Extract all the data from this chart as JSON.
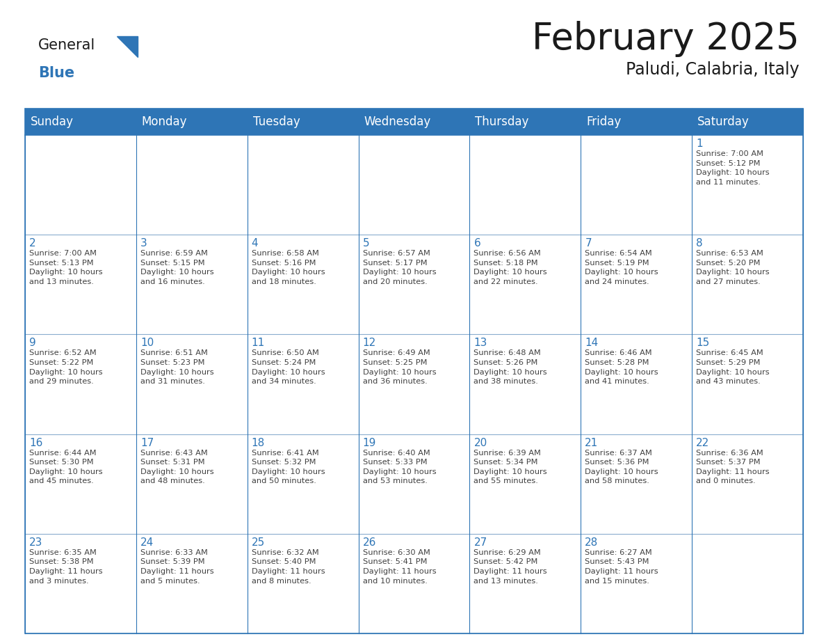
{
  "title": "February 2025",
  "subtitle": "Paludi, Calabria, Italy",
  "header_bg": "#2E75B6",
  "header_text_color": "#FFFFFF",
  "border_color": "#2E75B6",
  "row_border_color": "#4472A8",
  "day_number_color": "#2E75B6",
  "cell_text_color": "#404040",
  "logo_text_color": "#1a1a1a",
  "logo_blue_color": "#2E75B6",
  "days_of_week": [
    "Sunday",
    "Monday",
    "Tuesday",
    "Wednesday",
    "Thursday",
    "Friday",
    "Saturday"
  ],
  "title_fontsize": 38,
  "subtitle_fontsize": 17,
  "header_fontsize": 12,
  "day_num_fontsize": 11,
  "cell_text_fontsize": 8.2,
  "logo_general_fontsize": 15,
  "logo_blue_fontsize": 15,
  "calendar_data": [
    [
      {
        "day": null,
        "info": ""
      },
      {
        "day": null,
        "info": ""
      },
      {
        "day": null,
        "info": ""
      },
      {
        "day": null,
        "info": ""
      },
      {
        "day": null,
        "info": ""
      },
      {
        "day": null,
        "info": ""
      },
      {
        "day": 1,
        "info": "Sunrise: 7:00 AM\nSunset: 5:12 PM\nDaylight: 10 hours\nand 11 minutes."
      }
    ],
    [
      {
        "day": 2,
        "info": "Sunrise: 7:00 AM\nSunset: 5:13 PM\nDaylight: 10 hours\nand 13 minutes."
      },
      {
        "day": 3,
        "info": "Sunrise: 6:59 AM\nSunset: 5:15 PM\nDaylight: 10 hours\nand 16 minutes."
      },
      {
        "day": 4,
        "info": "Sunrise: 6:58 AM\nSunset: 5:16 PM\nDaylight: 10 hours\nand 18 minutes."
      },
      {
        "day": 5,
        "info": "Sunrise: 6:57 AM\nSunset: 5:17 PM\nDaylight: 10 hours\nand 20 minutes."
      },
      {
        "day": 6,
        "info": "Sunrise: 6:56 AM\nSunset: 5:18 PM\nDaylight: 10 hours\nand 22 minutes."
      },
      {
        "day": 7,
        "info": "Sunrise: 6:54 AM\nSunset: 5:19 PM\nDaylight: 10 hours\nand 24 minutes."
      },
      {
        "day": 8,
        "info": "Sunrise: 6:53 AM\nSunset: 5:20 PM\nDaylight: 10 hours\nand 27 minutes."
      }
    ],
    [
      {
        "day": 9,
        "info": "Sunrise: 6:52 AM\nSunset: 5:22 PM\nDaylight: 10 hours\nand 29 minutes."
      },
      {
        "day": 10,
        "info": "Sunrise: 6:51 AM\nSunset: 5:23 PM\nDaylight: 10 hours\nand 31 minutes."
      },
      {
        "day": 11,
        "info": "Sunrise: 6:50 AM\nSunset: 5:24 PM\nDaylight: 10 hours\nand 34 minutes."
      },
      {
        "day": 12,
        "info": "Sunrise: 6:49 AM\nSunset: 5:25 PM\nDaylight: 10 hours\nand 36 minutes."
      },
      {
        "day": 13,
        "info": "Sunrise: 6:48 AM\nSunset: 5:26 PM\nDaylight: 10 hours\nand 38 minutes."
      },
      {
        "day": 14,
        "info": "Sunrise: 6:46 AM\nSunset: 5:28 PM\nDaylight: 10 hours\nand 41 minutes."
      },
      {
        "day": 15,
        "info": "Sunrise: 6:45 AM\nSunset: 5:29 PM\nDaylight: 10 hours\nand 43 minutes."
      }
    ],
    [
      {
        "day": 16,
        "info": "Sunrise: 6:44 AM\nSunset: 5:30 PM\nDaylight: 10 hours\nand 45 minutes."
      },
      {
        "day": 17,
        "info": "Sunrise: 6:43 AM\nSunset: 5:31 PM\nDaylight: 10 hours\nand 48 minutes."
      },
      {
        "day": 18,
        "info": "Sunrise: 6:41 AM\nSunset: 5:32 PM\nDaylight: 10 hours\nand 50 minutes."
      },
      {
        "day": 19,
        "info": "Sunrise: 6:40 AM\nSunset: 5:33 PM\nDaylight: 10 hours\nand 53 minutes."
      },
      {
        "day": 20,
        "info": "Sunrise: 6:39 AM\nSunset: 5:34 PM\nDaylight: 10 hours\nand 55 minutes."
      },
      {
        "day": 21,
        "info": "Sunrise: 6:37 AM\nSunset: 5:36 PM\nDaylight: 10 hours\nand 58 minutes."
      },
      {
        "day": 22,
        "info": "Sunrise: 6:36 AM\nSunset: 5:37 PM\nDaylight: 11 hours\nand 0 minutes."
      }
    ],
    [
      {
        "day": 23,
        "info": "Sunrise: 6:35 AM\nSunset: 5:38 PM\nDaylight: 11 hours\nand 3 minutes."
      },
      {
        "day": 24,
        "info": "Sunrise: 6:33 AM\nSunset: 5:39 PM\nDaylight: 11 hours\nand 5 minutes."
      },
      {
        "day": 25,
        "info": "Sunrise: 6:32 AM\nSunset: 5:40 PM\nDaylight: 11 hours\nand 8 minutes."
      },
      {
        "day": 26,
        "info": "Sunrise: 6:30 AM\nSunset: 5:41 PM\nDaylight: 11 hours\nand 10 minutes."
      },
      {
        "day": 27,
        "info": "Sunrise: 6:29 AM\nSunset: 5:42 PM\nDaylight: 11 hours\nand 13 minutes."
      },
      {
        "day": 28,
        "info": "Sunrise: 6:27 AM\nSunset: 5:43 PM\nDaylight: 11 hours\nand 15 minutes."
      },
      {
        "day": null,
        "info": ""
      }
    ]
  ]
}
